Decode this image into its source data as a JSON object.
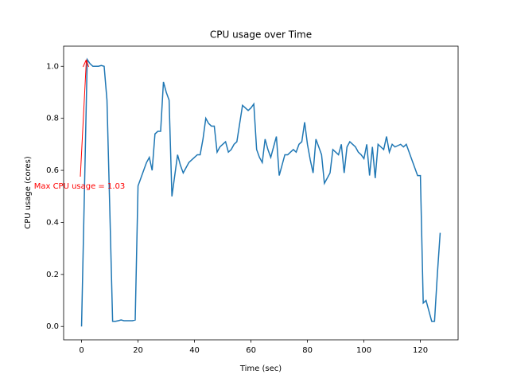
{
  "chart_data": {
    "type": "line",
    "title": "CPU usage over Time",
    "x_label": "Time (sec)",
    "y_label": "CPU usage (cores)",
    "annotation": "Max CPU usage = 1.03",
    "x": [
      0,
      1,
      2,
      3,
      4,
      5,
      6,
      7,
      8,
      9,
      10,
      11,
      12,
      13,
      14,
      15,
      16,
      17,
      18,
      19,
      20,
      21,
      22,
      23,
      24,
      25,
      26,
      27,
      28,
      29,
      30,
      31,
      32,
      33,
      34,
      35,
      36,
      37,
      38,
      39,
      40,
      41,
      42,
      43,
      44,
      45,
      46,
      47,
      48,
      49,
      50,
      51,
      52,
      53,
      54,
      55,
      56,
      57,
      58,
      59,
      60,
      61,
      62,
      63,
      64,
      65,
      66,
      67,
      68,
      69,
      70,
      71,
      72,
      73,
      74,
      75,
      76,
      77,
      78,
      79,
      80,
      81,
      82,
      83,
      84,
      85,
      86,
      87,
      88,
      89,
      90,
      91,
      92,
      93,
      94,
      95,
      96,
      97,
      98,
      99,
      100,
      101,
      102,
      103,
      104,
      105,
      106,
      107,
      108,
      109,
      110,
      111,
      112,
      113,
      114,
      115,
      116,
      117,
      118,
      119,
      120,
      121,
      122,
      123,
      124,
      125,
      126,
      127
    ],
    "series": [
      {
        "name": "CPU usage",
        "color": "#1f77b4",
        "values": [
          0,
          0.51,
          1.026,
          1.01,
          1.0,
          1.0,
          1.0,
          1.003,
          1.0,
          0.87,
          0.45,
          0.02,
          0.02,
          0.022,
          0.025,
          0.022,
          0.022,
          0.022,
          0.022,
          0.025,
          0.54,
          0.57,
          0.6,
          0.63,
          0.65,
          0.6,
          0.74,
          0.75,
          0.75,
          0.94,
          0.9,
          0.87,
          0.5,
          0.58,
          0.66,
          0.62,
          0.59,
          0.61,
          0.63,
          0.64,
          0.65,
          0.66,
          0.66,
          0.72,
          0.8,
          0.78,
          0.77,
          0.77,
          0.67,
          0.69,
          0.7,
          0.71,
          0.67,
          0.68,
          0.7,
          0.71,
          0.78,
          0.85,
          0.84,
          0.83,
          0.84,
          0.855,
          0.68,
          0.65,
          0.63,
          0.72,
          0.68,
          0.65,
          0.69,
          0.73,
          0.58,
          0.62,
          0.66,
          0.66,
          0.67,
          0.68,
          0.67,
          0.7,
          0.71,
          0.785,
          0.7,
          0.64,
          0.59,
          0.72,
          0.69,
          0.66,
          0.55,
          0.57,
          0.59,
          0.68,
          0.67,
          0.66,
          0.7,
          0.59,
          0.69,
          0.71,
          0.7,
          0.69,
          0.67,
          0.66,
          0.645,
          0.7,
          0.58,
          0.69,
          0.57,
          0.7,
          0.69,
          0.68,
          0.73,
          0.67,
          0.7,
          0.69,
          0.695,
          0.7,
          0.69,
          0.7,
          0.67,
          0.64,
          0.61,
          0.58,
          0.58,
          0.09,
          0.1,
          0.06,
          0.02,
          0.02,
          0.2,
          0.36
        ]
      }
    ],
    "xlim": [
      -6.35,
      133.35
    ],
    "xticks": [
      0,
      20,
      40,
      60,
      80,
      100,
      120
    ],
    "ylim": [
      -0.0513,
      1.0773
    ],
    "yticks": [
      {
        "value": 0,
        "label": "0.0"
      },
      0.2,
      0.4,
      0.6,
      0.8,
      {
        "value": 1,
        "label": "1.0"
      }
    ],
    "annotation_color": "#ff0000"
  }
}
